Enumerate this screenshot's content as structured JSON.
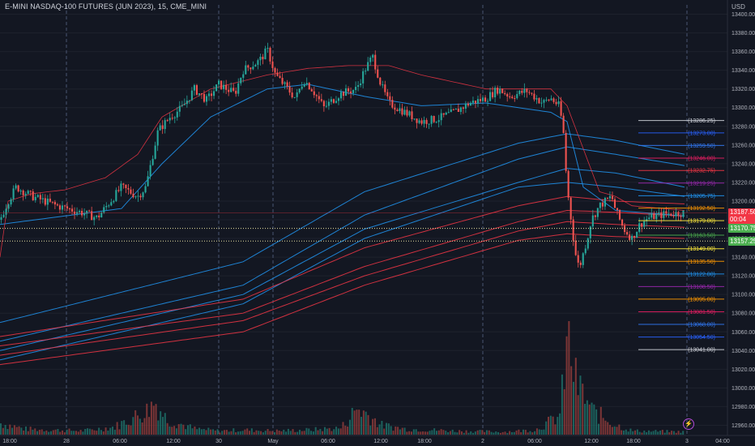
{
  "symbol": {
    "title": "E-MINI NASDAQ-100 FUTURES (JUN 2023), 15, CME_MINI"
  },
  "axis": {
    "currency": "USD"
  },
  "colors": {
    "up": "#26a69a",
    "down": "#ef5350",
    "bg": "#131722",
    "blue": "#2196f3",
    "red": "#f23645",
    "axis_text": "#b2b5be"
  },
  "chart_data": {
    "type": "candlestick",
    "ylim": [
      12950,
      13410
    ],
    "y_ticks": [
      13400,
      13380,
      13360,
      13340,
      13320,
      13300,
      13280,
      13260,
      13240,
      13220,
      13200,
      13180,
      13160,
      13140,
      13120,
      13100,
      13080,
      13060,
      13040,
      13020,
      13000,
      12980,
      12960
    ],
    "y_tick_labels": [
      "13400.00",
      "13380.00",
      "13360.00",
      "13340.00",
      "13320.00",
      "13300.00",
      "13280.00",
      "13260.00",
      "13240.00",
      "13220.00",
      "13200.00",
      "13180.00",
      "13160.00",
      "13140.00",
      "13120.00",
      "13100.00",
      "13080.00",
      "13060.00",
      "13040.00",
      "13020.00",
      "13000.00",
      "12980.00",
      "12960.00"
    ],
    "x_labels": [
      "18:00",
      "28",
      "06:00",
      "12:00",
      "30",
      "May",
      "06:00",
      "12:00",
      "18:00",
      "2",
      "06:00",
      "12:00",
      "18:00",
      "3",
      "04:00"
    ],
    "session_dividers": [
      "28",
      "30",
      "May",
      "2",
      "3"
    ],
    "price_path": [
      [
        13180,
        0
      ],
      [
        13200,
        10
      ],
      [
        13215,
        20
      ],
      [
        13205,
        40
      ],
      [
        13195,
        70
      ],
      [
        13188,
        100
      ],
      [
        13182,
        120
      ],
      [
        13215,
        150
      ],
      [
        13205,
        170
      ],
      [
        13215,
        180
      ],
      [
        13275,
        195
      ],
      [
        13290,
        210
      ],
      [
        13300,
        225
      ],
      [
        13320,
        240
      ],
      [
        13308,
        255
      ],
      [
        13325,
        270
      ],
      [
        13315,
        290
      ],
      [
        13340,
        300
      ],
      [
        13350,
        320
      ],
      [
        13362,
        330
      ],
      [
        13335,
        340
      ],
      [
        13325,
        350
      ],
      [
        13310,
        365
      ],
      [
        13330,
        375
      ],
      [
        13320,
        385
      ],
      [
        13300,
        400
      ],
      [
        13315,
        420
      ],
      [
        13320,
        440
      ],
      [
        13340,
        450
      ],
      [
        13355,
        460
      ],
      [
        13325,
        470
      ],
      [
        13305,
        480
      ],
      [
        13295,
        500
      ],
      [
        13285,
        520
      ],
      [
        13288,
        540
      ],
      [
        13295,
        560
      ],
      [
        13305,
        580
      ],
      [
        13310,
        600
      ],
      [
        13320,
        615
      ],
      [
        13312,
        630
      ],
      [
        13318,
        650
      ],
      [
        13305,
        670
      ],
      [
        13310,
        680
      ],
      [
        13302,
        690
      ],
      [
        13280,
        695
      ],
      [
        13215,
        700
      ],
      [
        13145,
        710
      ],
      [
        13128,
        715
      ],
      [
        13160,
        725
      ],
      [
        13180,
        730
      ],
      [
        13195,
        740
      ],
      [
        13205,
        755
      ],
      [
        13190,
        760
      ],
      [
        13170,
        770
      ],
      [
        13160,
        780
      ],
      [
        13175,
        790
      ],
      [
        13182,
        800
      ],
      [
        13186,
        820
      ],
      [
        13187.5,
        845
      ]
    ],
    "volume_path": [
      [
        0.12,
        0
      ],
      [
        0.06,
        30
      ],
      [
        0.05,
        60
      ],
      [
        0.04,
        100
      ],
      [
        0.08,
        140
      ],
      [
        0.25,
        180
      ],
      [
        0.35,
        190
      ],
      [
        0.16,
        205
      ],
      [
        0.06,
        240
      ],
      [
        0.04,
        270
      ],
      [
        0.05,
        300
      ],
      [
        0.04,
        340
      ],
      [
        0.05,
        380
      ],
      [
        0.07,
        420
      ],
      [
        0.28,
        440
      ],
      [
        0.2,
        455
      ],
      [
        0.1,
        470
      ],
      [
        0.06,
        500
      ],
      [
        0.04,
        560
      ],
      [
        0.03,
        620
      ],
      [
        0.05,
        660
      ],
      [
        0.2,
        690
      ],
      [
        1.0,
        700
      ],
      [
        0.55,
        710
      ],
      [
        0.25,
        730
      ],
      [
        0.1,
        760
      ],
      [
        0.04,
        780
      ],
      [
        0.03,
        845
      ]
    ],
    "bands": [
      {
        "color": "#2196f3",
        "points": [
          [
            0,
            13040
          ],
          [
            300,
            13100
          ],
          [
            450,
            13170
          ],
          [
            640,
            13220
          ],
          [
            700,
            13235
          ],
          [
            760,
            13230
          ],
          [
            845,
            13215
          ]
        ]
      },
      {
        "color": "#2196f3",
        "points": [
          [
            0,
            13030
          ],
          [
            300,
            13090
          ],
          [
            450,
            13160
          ],
          [
            640,
            13215
          ],
          [
            700,
            13220
          ],
          [
            760,
            13215
          ],
          [
            845,
            13205
          ]
        ]
      },
      {
        "color": "#2196f3",
        "points": [
          [
            0,
            13050
          ],
          [
            300,
            13110
          ],
          [
            450,
            13185
          ],
          [
            640,
            13245
          ],
          [
            700,
            13258
          ],
          [
            760,
            13250
          ],
          [
            845,
            13238
          ]
        ]
      },
      {
        "color": "#2196f3",
        "points": [
          [
            0,
            13070
          ],
          [
            300,
            13135
          ],
          [
            450,
            13210
          ],
          [
            640,
            13262
          ],
          [
            700,
            13272
          ],
          [
            760,
            13265
          ],
          [
            845,
            13250
          ]
        ]
      },
      {
        "color": "#f23645",
        "points": [
          [
            0,
            13045
          ],
          [
            300,
            13080
          ],
          [
            450,
            13130
          ],
          [
            640,
            13178
          ],
          [
            700,
            13190
          ],
          [
            760,
            13188
          ],
          [
            845,
            13184
          ]
        ]
      },
      {
        "color": "#f23645",
        "points": [
          [
            0,
            13035
          ],
          [
            300,
            13072
          ],
          [
            450,
            13120
          ],
          [
            640,
            13168
          ],
          [
            700,
            13178
          ],
          [
            760,
            13175
          ],
          [
            845,
            13172
          ]
        ]
      },
      {
        "color": "#f23645",
        "points": [
          [
            0,
            13055
          ],
          [
            300,
            13095
          ],
          [
            450,
            13150
          ],
          [
            640,
            13195
          ],
          [
            700,
            13205
          ],
          [
            760,
            13200
          ],
          [
            845,
            13197
          ]
        ]
      },
      {
        "color": "#f23645",
        "points": [
          [
            0,
            13025
          ],
          [
            300,
            13060
          ],
          [
            450,
            13110
          ],
          [
            640,
            13158
          ],
          [
            700,
            13165
          ],
          [
            760,
            13162
          ],
          [
            845,
            13160
          ]
        ]
      }
    ],
    "fast_ma": {
      "color": "#2196f3",
      "points": [
        [
          0,
          13175
        ],
        [
          150,
          13192
        ],
        [
          200,
          13240
        ],
        [
          260,
          13290
        ],
        [
          330,
          13320
        ],
        [
          380,
          13325
        ],
        [
          450,
          13312
        ],
        [
          520,
          13302
        ],
        [
          600,
          13305
        ],
        [
          680,
          13295
        ],
        [
          700,
          13285
        ],
        [
          720,
          13215
        ],
        [
          760,
          13190
        ],
        [
          845,
          13184
        ]
      ]
    },
    "envelope": {
      "color": "#f23645",
      "points": [
        [
          0,
          13140
        ],
        [
          10,
          13200
        ],
        [
          40,
          13208
        ],
        [
          80,
          13212
        ],
        [
          130,
          13225
        ],
        [
          170,
          13250
        ],
        [
          200,
          13290
        ],
        [
          260,
          13320
        ],
        [
          330,
          13335
        ],
        [
          380,
          13342
        ],
        [
          430,
          13345
        ],
        [
          480,
          13345
        ],
        [
          520,
          13335
        ],
        [
          600,
          13320
        ],
        [
          680,
          13320
        ],
        [
          700,
          13302
        ],
        [
          740,
          13210
        ],
        [
          760,
          13205
        ],
        [
          780,
          13195
        ],
        [
          845,
          13190
        ]
      ]
    },
    "level_labels": [
      {
        "label": "13286.25",
        "price": 13286.25,
        "color": "#d1d4dc"
      },
      {
        "label": "13273.00",
        "price": 13273,
        "color": "#2962ff"
      },
      {
        "label": "13259.50",
        "price": 13259.5,
        "color": "#3179f5"
      },
      {
        "label": "13246.00",
        "price": 13246,
        "color": "#e91e63"
      },
      {
        "label": "13232.75",
        "price": 13232.75,
        "color": "#f23645"
      },
      {
        "label": "13219.25",
        "price": 13219.25,
        "color": "#9c27b0"
      },
      {
        "label": "13205.75",
        "price": 13205.75,
        "color": "#2196f3"
      },
      {
        "label": "13192.50",
        "price": 13192.5,
        "color": "#ff9800"
      },
      {
        "label": "13179.00",
        "price": 13179,
        "color": "#ffeb3b"
      },
      {
        "label": "13163.50",
        "price": 13163.5,
        "color": "#4caf50"
      },
      {
        "label": "13149.00",
        "price": 13149,
        "color": "#ffeb3b"
      },
      {
        "label": "13135.50",
        "price": 13135.5,
        "color": "#ff9800"
      },
      {
        "label": "13122.00",
        "price": 13122,
        "color": "#2196f3"
      },
      {
        "label": "13108.50",
        "price": 13108.5,
        "color": "#9c27b0"
      },
      {
        "label": "13095.00",
        "price": 13095,
        "color": "#ff9800"
      },
      {
        "label": "13081.50",
        "price": 13081.5,
        "color": "#e91e63"
      },
      {
        "label": "13068.00",
        "price": 13068,
        "color": "#3179f5"
      },
      {
        "label": "13054.50",
        "price": 13054.5,
        "color": "#2962ff"
      },
      {
        "label": "13041.00",
        "price": 13041,
        "color": "#d1d4dc"
      }
    ],
    "price_tags": [
      {
        "price": 13187.5,
        "label": "13187.50",
        "sub": "00:04",
        "color": "#f23645"
      },
      {
        "price": 13170.75,
        "label": "13170.75",
        "sub": "",
        "color": "#4caf50"
      },
      {
        "price": 13157.25,
        "label": "13157.25",
        "sub": "",
        "color": "#4caf50"
      }
    ],
    "dotted_lines": [
      13170.75,
      13157.25
    ]
  }
}
